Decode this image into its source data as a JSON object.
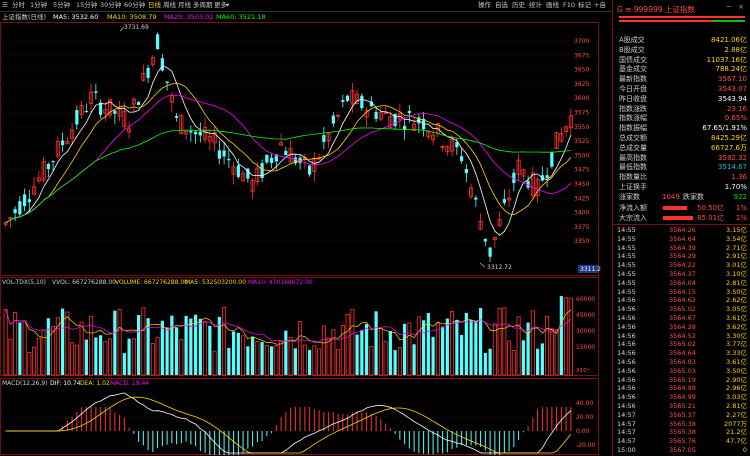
{
  "toolbar": {
    "tabs": [
      "分时",
      "1分钟",
      "5分钟",
      "15分钟",
      "30分钟",
      "60分钟",
      "日线",
      "周线",
      "月线",
      "多周期",
      "更多"
    ],
    "active_tab": "日线",
    "right_items": [
      "操作",
      "自选",
      "历史",
      "统计",
      "画线",
      "F10",
      "标记",
      "+自",
      "返回"
    ]
  },
  "main_chart": {
    "title": "上证指数(日线)",
    "ma_labels": [
      {
        "text": "MA5: 3532.60",
        "color": "#ffffff"
      },
      {
        "text": "MA10: 3508.79",
        "color": "#ffd700"
      },
      {
        "text": "MA20: 3503.02",
        "color": "#ff00ff"
      },
      {
        "text": "MA60: 3521.18",
        "color": "#00ff00"
      }
    ],
    "price_ticks": [
      "3700",
      "3675",
      "3650",
      "3625",
      "3600",
      "3575",
      "3550",
      "3525",
      "3500",
      "3475",
      "3450",
      "3425",
      "3400",
      "3375",
      "3350"
    ],
    "high_label": "3731.69",
    "low_label": "3312.72",
    "current_price_tag": "3311.2"
  },
  "volume_chart": {
    "indicator_label": "VOL-TDX(5,10)",
    "vvol_label": "VVOL: 667276288.00",
    "volume_label": "VOLUME: 667276288.00",
    "ma5_label": "MA5: 532503200.00",
    "ma10_label": "MA10: 470168672.00",
    "ticks": [
      "60000",
      "45000",
      "30000",
      "15000"
    ],
    "unit": "X10⁴"
  },
  "macd_chart": {
    "label": "MACD(12,26,9)",
    "dif": "DIF: 10.74",
    "dea": "DEA: 1.02",
    "macd": "MACD: 19.44",
    "ticks": [
      "40.00",
      "20.00",
      "0.00",
      "-20.00"
    ]
  },
  "right_panel": {
    "code": "999999",
    "name": "上证指数",
    "quotes": [
      {
        "label": "A股成交",
        "value": "8421.06亿",
        "color": "#ffd700"
      },
      {
        "label": "B股成交",
        "value": "2.88亿",
        "color": "#ffd700"
      },
      {
        "label": "国债成交",
        "value": "11037.16亿",
        "color": "#ffd700"
      },
      {
        "label": "基金成交",
        "value": "788.24亿",
        "color": "#ffd700"
      },
      {
        "label": "最新指数",
        "value": "3567.10",
        "color": "#ff4a4a"
      },
      {
        "label": "今日开盘",
        "value": "3543.07",
        "color": "#ff4a4a"
      },
      {
        "label": "昨日收盘",
        "value": "3543.94",
        "color": "#ffffff"
      },
      {
        "label": "指数涨跌",
        "value": "23.16",
        "color": "#ff4a4a"
      },
      {
        "label": "指数涨幅",
        "value": "0.65%",
        "color": "#ff4a4a"
      },
      {
        "label": "指数振幅",
        "value": "67.65/1.91%",
        "color": "#ffffff"
      },
      {
        "label": "总成交额",
        "value": "8425.29亿",
        "color": "#ffd700"
      },
      {
        "label": "总成交量",
        "value": "66727.6万",
        "color": "#ffd700"
      },
      {
        "label": "最高指数",
        "value": "3582.32",
        "color": "#ff4a4a"
      },
      {
        "label": "最低指数",
        "value": "3514.67",
        "color": "#00c8c8"
      },
      {
        "label": "指数量比",
        "value": "1.36",
        "color": "#ff4a4a"
      },
      {
        "label": "上证换手",
        "value": "1.70%",
        "color": "#ffffff"
      }
    ],
    "rise_label": "涨家数",
    "rise_count": "1049",
    "fall_label": "跌家数",
    "fall_count": "922",
    "net_inflow_label": "净流入额",
    "net_inflow": "50.50亿",
    "net_inflow_pct": "1%",
    "big_order_label": "大宗流入",
    "big_order": "85.01亿",
    "big_order_pct": "1%",
    "ticks": [
      {
        "time": "14:55",
        "price": "3564.26",
        "amt": "3.15亿"
      },
      {
        "time": "14:55",
        "price": "3564.64",
        "amt": "3.54亿"
      },
      {
        "time": "14:55",
        "price": "3564.39",
        "amt": "2.71亿"
      },
      {
        "time": "14:55",
        "price": "3564.29",
        "amt": "2.91亿"
      },
      {
        "time": "14:55",
        "price": "3564.22",
        "amt": "3.01亿"
      },
      {
        "time": "14:55",
        "price": "3564.37",
        "amt": "3.10亿"
      },
      {
        "time": "14:55",
        "price": "3564.04",
        "amt": "2.81亿"
      },
      {
        "time": "14:55",
        "price": "3564.15",
        "amt": "3.50亿"
      },
      {
        "time": "14:56",
        "price": "3564.62",
        "amt": "2.62亿"
      },
      {
        "time": "14:56",
        "price": "3565.02",
        "amt": "3.05亿"
      },
      {
        "time": "14:56",
        "price": "3564.67",
        "amt": "3.61亿"
      },
      {
        "time": "14:56",
        "price": "3564.28",
        "amt": "3.62亿"
      },
      {
        "time": "14:56",
        "price": "3564.52",
        "amt": "3.30亿"
      },
      {
        "time": "14:56",
        "price": "3565.02",
        "amt": "3.77亿"
      },
      {
        "time": "14:56",
        "price": "3564.64",
        "amt": "3.33亿"
      },
      {
        "time": "14:56",
        "price": "3564.93",
        "amt": "3.61亿"
      },
      {
        "time": "14:56",
        "price": "3565.03",
        "amt": "3.50亿"
      },
      {
        "time": "14:56",
        "price": "3565.19",
        "amt": "2.90亿"
      },
      {
        "time": "14:56",
        "price": "3564.98",
        "amt": "2.96亿"
      },
      {
        "time": "14:56",
        "price": "3564.99",
        "amt": "3.03亿"
      },
      {
        "time": "14:56",
        "price": "3565.21",
        "amt": "2.81亿"
      },
      {
        "time": "14:57",
        "price": "3565.37",
        "amt": "2.27亿"
      },
      {
        "time": "14:57",
        "price": "3565.38",
        "amt": "2077万"
      },
      {
        "time": "14:57",
        "price": "3565.38",
        "amt": "21.2亿"
      },
      {
        "time": "14:57",
        "price": "3565.76",
        "amt": "47.7亿"
      },
      {
        "time": "15:00",
        "price": "3567.05",
        "amt": "0"
      }
    ]
  },
  "colors": {
    "up": "#ff3232",
    "down": "#54ffff",
    "ma5": "#ffffff",
    "ma10": "#ffd700",
    "ma20": "#ff00ff",
    "ma60": "#00ff00"
  }
}
